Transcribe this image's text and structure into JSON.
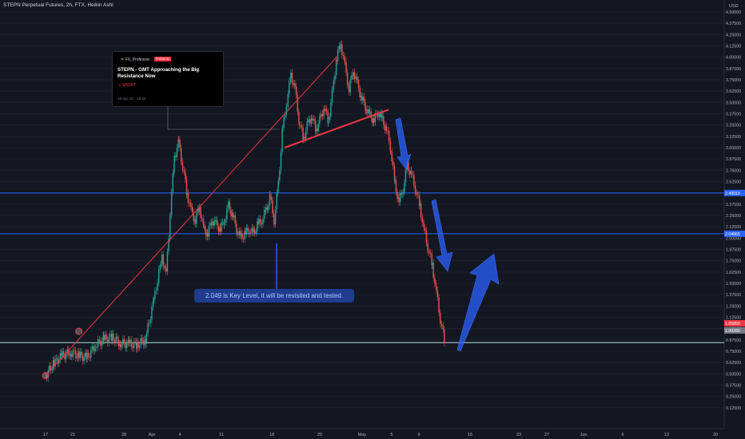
{
  "header": {
    "symbol_line": "STEPN Perpetual Futures, 2h, FTX, Heikin Ashi",
    "currency": "USD"
  },
  "idea_card": {
    "author": "FX_Professor",
    "badge": "PREMIUM",
    "title": "STEPN - GMT Approaching the Big Resistance Now",
    "direction": "↘ SHORT",
    "date": "18 Apr '22 · 19:32"
  },
  "annotation": {
    "text": "2.049 is Key Level, it will be revisited and tested."
  },
  "colors": {
    "background": "#131722",
    "level_line": "#2962ff",
    "support_line": "#b2dfdb",
    "trend_line": "#f23645",
    "arrow": "#2962ff",
    "candle_up": "#26a69a",
    "candle_down": "#ef5350"
  },
  "chart_data": {
    "type": "candlestick",
    "y_scale": "linear",
    "ylim": [
      0,
      4.5
    ],
    "y_ticks": [
      "4.50000",
      "4.37500",
      "4.25000",
      "4.12500",
      "4.00000",
      "3.87500",
      "3.75000",
      "3.62500",
      "3.50000",
      "3.37500",
      "3.25000",
      "3.12500",
      "3.00000",
      "2.87500",
      "2.75000",
      "2.62500",
      "2.50000",
      "2.37500",
      "2.25000",
      "2.12500",
      "2.00000",
      "1.87500",
      "1.75000",
      "1.62500",
      "1.50000",
      "1.37500",
      "1.25000",
      "1.12500",
      "1.00000",
      "0.87500",
      "0.75000",
      "0.62500",
      "0.50000",
      "0.37500",
      "0.25000",
      "0.12500"
    ],
    "x_ticks": [
      "17",
      "21",
      "28",
      "Apr",
      "4",
      "11",
      "18",
      "25",
      "May",
      "5",
      "9",
      "16",
      "23",
      "27",
      "Jun",
      "6",
      "13",
      "20"
    ],
    "price_tags": [
      {
        "label": "2.49910",
        "value": 2.4991,
        "color": "#2962ff"
      },
      {
        "label": "2.04865",
        "value": 2.04865,
        "color": "#2962ff"
      },
      {
        "label": "1.05850",
        "value": 1.0585,
        "color": "#f23645"
      },
      {
        "label": "1.00280",
        "value": 0.98,
        "color": "#787b86"
      }
    ],
    "horizontal_levels": [
      2.4991,
      2.04865,
      0.845
    ],
    "price_series": [
      [
        0,
        0.48
      ],
      [
        4,
        0.62
      ],
      [
        8,
        0.7
      ],
      [
        12,
        0.74
      ],
      [
        16,
        0.7
      ],
      [
        20,
        0.68
      ],
      [
        24,
        0.82
      ],
      [
        28,
        0.88
      ],
      [
        32,
        0.9
      ],
      [
        36,
        0.84
      ],
      [
        40,
        0.83
      ],
      [
        44,
        0.82
      ],
      [
        48,
        0.88
      ],
      [
        52,
        1.3
      ],
      [
        56,
        1.8
      ],
      [
        58,
        1.6
      ],
      [
        60,
        2.3
      ],
      [
        62,
        2.9
      ],
      [
        64,
        3.05
      ],
      [
        66,
        2.8
      ],
      [
        68,
        2.5
      ],
      [
        70,
        2.3
      ],
      [
        72,
        2.2
      ],
      [
        74,
        2.35
      ],
      [
        76,
        2.1
      ],
      [
        78,
        2.05
      ],
      [
        80,
        2.2
      ],
      [
        82,
        2.15
      ],
      [
        84,
        2.1
      ],
      [
        86,
        2.2
      ],
      [
        88,
        2.35
      ],
      [
        90,
        2.25
      ],
      [
        92,
        2.1
      ],
      [
        94,
        2.0
      ],
      [
        96,
        2.05
      ],
      [
        98,
        2.1
      ],
      [
        100,
        2.05
      ],
      [
        102,
        2.15
      ],
      [
        104,
        2.2
      ],
      [
        106,
        2.3
      ],
      [
        108,
        2.45
      ],
      [
        110,
        2.2
      ],
      [
        112,
        2.6
      ],
      [
        114,
        3.2
      ],
      [
        116,
        3.5
      ],
      [
        118,
        3.8
      ],
      [
        120,
        3.65
      ],
      [
        122,
        3.3
      ],
      [
        124,
        3.1
      ],
      [
        126,
        3.25
      ],
      [
        128,
        3.35
      ],
      [
        130,
        3.2
      ],
      [
        132,
        3.3
      ],
      [
        134,
        3.45
      ],
      [
        136,
        3.3
      ],
      [
        138,
        3.6
      ],
      [
        140,
        4.0
      ],
      [
        142,
        4.15
      ],
      [
        144,
        3.9
      ],
      [
        146,
        3.65
      ],
      [
        148,
        3.85
      ],
      [
        150,
        3.7
      ],
      [
        152,
        3.55
      ],
      [
        154,
        3.45
      ],
      [
        156,
        3.35
      ],
      [
        158,
        3.3
      ],
      [
        160,
        3.4
      ],
      [
        162,
        3.3
      ],
      [
        164,
        3.2
      ],
      [
        166,
        3.0
      ],
      [
        168,
        2.6
      ],
      [
        170,
        2.4
      ],
      [
        172,
        2.55
      ],
      [
        174,
        2.8
      ],
      [
        176,
        2.7
      ],
      [
        178,
        2.55
      ],
      [
        180,
        2.35
      ],
      [
        182,
        2.1
      ],
      [
        184,
        1.9
      ],
      [
        186,
        1.7
      ],
      [
        188,
        1.4
      ],
      [
        190,
        1.1
      ],
      [
        192,
        0.85
      ]
    ],
    "trend_lines": [
      {
        "from": [
          0,
          0.48
        ],
        "to": [
          140,
          4.0
        ]
      },
      {
        "from": [
          115,
          3.0
        ],
        "to": [
          165,
          3.42
        ]
      }
    ],
    "touch_points": [
      [
        0,
        0.48
      ],
      [
        16,
        0.97
      ]
    ]
  }
}
